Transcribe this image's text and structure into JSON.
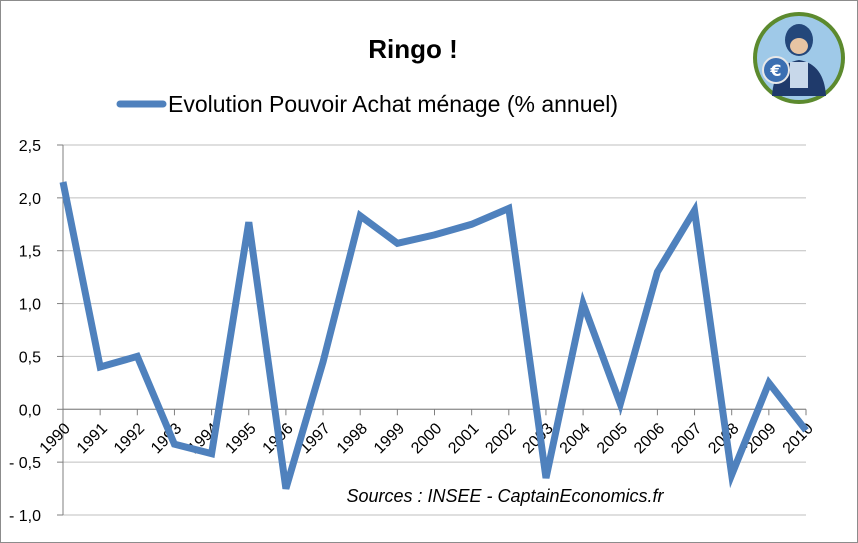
{
  "chart_data": {
    "type": "line",
    "title": "Ringo !",
    "x": [
      "1990",
      "1991",
      "1992",
      "1993",
      "1994",
      "1995",
      "1996",
      "1997",
      "1998",
      "1999",
      "2000",
      "2001",
      "2002",
      "2003",
      "2004",
      "2005",
      "2006",
      "2007",
      "2008",
      "2009",
      "2010"
    ],
    "series": [
      {
        "name": "Evolution Pouvoir Achat ménage (% annuel)",
        "values": [
          2.15,
          0.4,
          0.5,
          -0.33,
          -0.42,
          1.77,
          -0.75,
          0.45,
          1.83,
          1.57,
          1.65,
          1.75,
          1.9,
          -0.65,
          1.0,
          0.05,
          1.3,
          1.88,
          -0.62,
          0.25,
          -0.2
        ]
      }
    ],
    "yticks": [
      "2,5",
      "2,0",
      "1,5",
      "1,0",
      "0,5",
      "0,0",
      "- 0,5",
      "- 1,0"
    ],
    "ylim": [
      -1.0,
      2.5
    ],
    "xlabel": "",
    "ylabel": "",
    "legend": "top",
    "grid": true,
    "annotation": "Sources : INSEE  - CaptainEconomics.fr",
    "colors": {
      "line": "#4f81bd",
      "grid": "#bfbfbf",
      "axis": "#7f7f7f"
    }
  },
  "logo": {
    "icon": "captain-economics-logo"
  }
}
